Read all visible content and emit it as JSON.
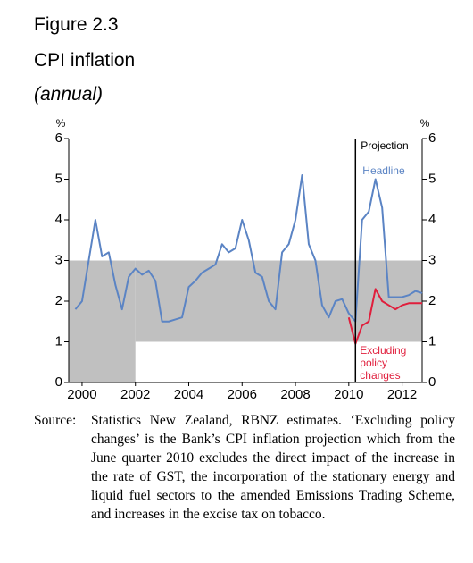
{
  "chart_data": {
    "type": "line",
    "figure_label": "Figure 2.3",
    "title": "CPI inflation",
    "subtitle": "(annual)",
    "ylabel": "%",
    "y2label": "%",
    "x": [
      1999.75,
      2000,
      2000.25,
      2000.5,
      2000.75,
      2001,
      2001.25,
      2001.5,
      2001.75,
      2002,
      2002.25,
      2002.5,
      2002.75,
      2003,
      2003.25,
      2003.5,
      2003.75,
      2004,
      2004.25,
      2004.5,
      2004.75,
      2005,
      2005.25,
      2005.5,
      2005.75,
      2006,
      2006.25,
      2006.5,
      2006.75,
      2007,
      2007.25,
      2007.5,
      2007.75,
      2008,
      2008.25,
      2008.5,
      2008.75,
      2009,
      2009.25,
      2009.5,
      2009.75,
      2010,
      2010.25,
      2010.5,
      2010.75,
      2011,
      2011.25,
      2011.5,
      2011.75,
      2012,
      2012.25,
      2012.5,
      2012.75
    ],
    "series": [
      {
        "name": "Headline",
        "color": "#5b84c4",
        "values": [
          1.8,
          2.0,
          3.0,
          4.0,
          3.1,
          3.2,
          2.4,
          1.8,
          2.6,
          2.8,
          2.65,
          2.75,
          2.5,
          1.5,
          1.5,
          1.55,
          1.6,
          2.35,
          2.5,
          2.7,
          2.8,
          2.9,
          3.4,
          3.2,
          3.3,
          4.0,
          3.5,
          2.7,
          2.6,
          2.0,
          1.8,
          3.2,
          3.4,
          4.0,
          5.1,
          3.4,
          3.0,
          1.9,
          1.6,
          2.0,
          2.05,
          1.7,
          1.5,
          4.0,
          4.2,
          5.0,
          4.3,
          2.1,
          2.1,
          2.1,
          2.15,
          2.25,
          2.2
        ]
      },
      {
        "name": "Excluding policy changes",
        "color": "#e01e3c",
        "values": [
          null,
          null,
          null,
          null,
          null,
          null,
          null,
          null,
          null,
          null,
          null,
          null,
          null,
          null,
          null,
          null,
          null,
          null,
          null,
          null,
          null,
          null,
          null,
          null,
          null,
          null,
          null,
          null,
          null,
          null,
          null,
          null,
          null,
          null,
          null,
          null,
          null,
          null,
          null,
          null,
          null,
          1.6,
          0.95,
          1.4,
          1.5,
          2.3,
          2.0,
          1.9,
          1.8,
          1.9,
          1.95,
          1.95,
          1.95
        ]
      }
    ],
    "xlim": [
      1999.5,
      2012.75
    ],
    "xticks": [
      2000,
      2002,
      2004,
      2006,
      2008,
      2010,
      2012
    ],
    "ylim": [
      0,
      6
    ],
    "yticks": [
      0,
      1,
      2,
      3,
      4,
      5,
      6
    ],
    "y2lim": [
      0,
      6
    ],
    "y2ticks": [
      0,
      1,
      2,
      3,
      4,
      5,
      6
    ],
    "shaded_bands": [
      {
        "x": [
          1999.5,
          2002
        ],
        "y": [
          0,
          3
        ]
      },
      {
        "x": [
          2002,
          2012.75
        ],
        "y": [
          1,
          3
        ]
      }
    ],
    "band_color": "#c0c0c0",
    "projection_x": 2010.25,
    "annotations": {
      "projection": "Projection",
      "headline": "Headline",
      "excluding": [
        "Excluding",
        "policy",
        "changes"
      ]
    }
  },
  "source": {
    "label": "Source:",
    "text": "Statistics New Zealand, RBNZ estimates. ‘Excluding policy changes’ is the Bank’s CPI inflation projection which from the June quarter 2010 excludes the direct impact of the increase in the rate of GST, the incorporation of the stationary energy and liquid fuel sectors to the amended Emissions Trading Scheme, and increases in the excise tax on tobacco."
  }
}
